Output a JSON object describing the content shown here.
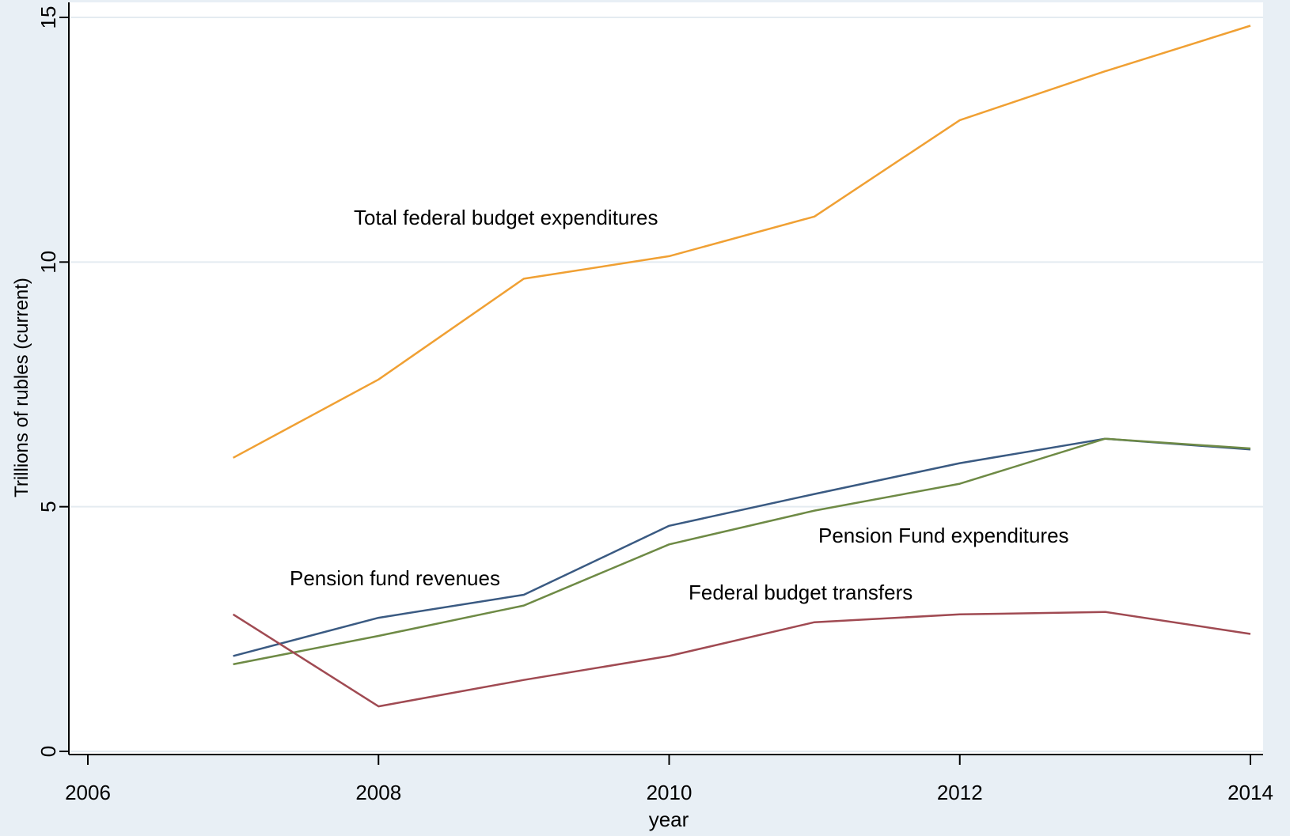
{
  "chart_data": {
    "type": "line",
    "title": "",
    "xlabel": "year",
    "ylabel": "Trillions of rubles (current)",
    "xlim": [
      2006,
      2014
    ],
    "ylim": [
      0,
      15
    ],
    "x_ticks": [
      2006,
      2008,
      2010,
      2012,
      2014
    ],
    "y_ticks": [
      0,
      5,
      10,
      15
    ],
    "grid": "horizontal",
    "legend": "none (series labelled directly on the plot)",
    "x": [
      2007,
      2008,
      2009,
      2010,
      2011,
      2012,
      2013,
      2014
    ],
    "series": [
      {
        "name": "Total federal budget expenditures",
        "color": "#f0a033",
        "values": [
          6.0,
          7.6,
          9.66,
          10.12,
          10.93,
          12.9,
          13.9,
          14.83
        ]
      },
      {
        "name": "Pension fund revenues",
        "color": "#3a5a82",
        "values": [
          1.95,
          2.73,
          3.2,
          4.61,
          5.26,
          5.89,
          6.39,
          6.17
        ]
      },
      {
        "name": "Pension Fund expenditures",
        "color": "#6e8a45",
        "values": [
          1.78,
          2.36,
          2.98,
          4.23,
          4.92,
          5.47,
          6.39,
          6.19
        ]
      },
      {
        "name": "Federal budget transfers",
        "color": "#a04a52",
        "values": [
          2.8,
          0.92,
          1.46,
          1.95,
          2.64,
          2.8,
          2.85,
          2.4
        ]
      }
    ]
  }
}
